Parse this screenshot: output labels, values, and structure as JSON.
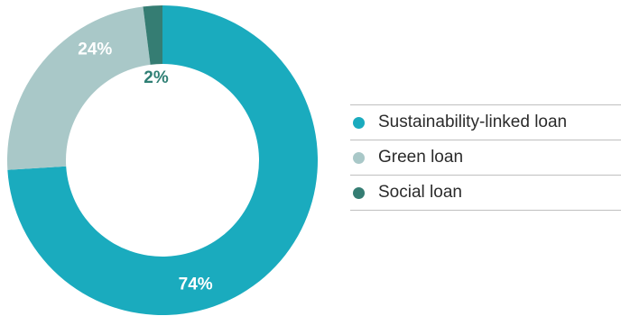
{
  "chart_data": {
    "type": "pie",
    "categories": [
      "Sustainability-linked loan",
      "Green loan",
      "Social loan"
    ],
    "values": [
      74,
      24,
      2
    ],
    "data_labels": [
      "74%",
      "24%",
      "2%"
    ],
    "colors": [
      "#1aabbe",
      "#a9c8c8",
      "#357d73"
    ],
    "label_colors": [
      "#ffffff",
      "#ffffff",
      "#2f7f74"
    ],
    "donut": true,
    "start_angle_deg": 0,
    "direction": "clockwise",
    "legend_position": "right",
    "title": "",
    "xlabel": "",
    "ylabel": ""
  },
  "legend": {
    "items": [
      {
        "label": "Sustainability-linked loan",
        "color": "#1aabbe"
      },
      {
        "label": "Green loan",
        "color": "#a9c8c8"
      },
      {
        "label": "Social loan",
        "color": "#357d73"
      }
    ]
  }
}
